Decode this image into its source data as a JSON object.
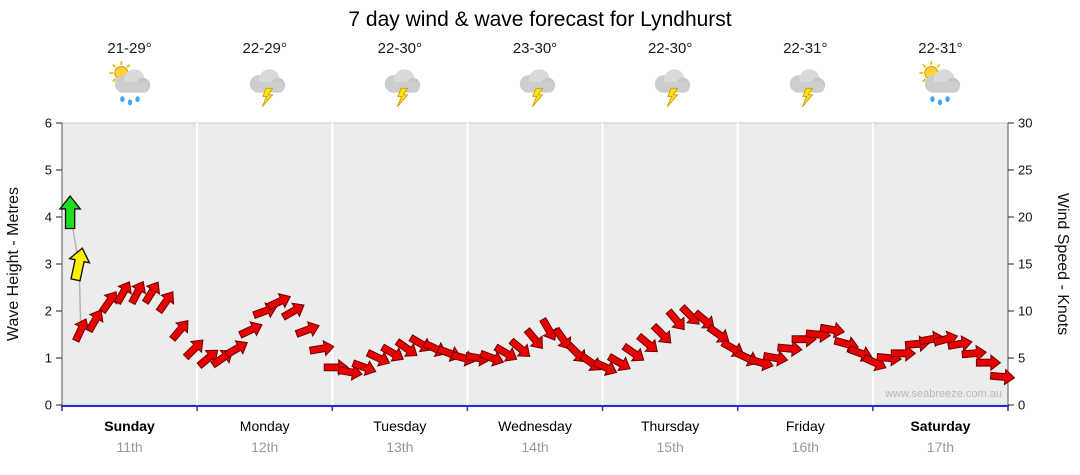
{
  "title": "7 day wind & wave forecast for Lyndhurst",
  "watermark": "www.seabreeze.com.au",
  "chart_data": {
    "type": "scatter",
    "title": "7 day wind & wave forecast for Lyndhurst",
    "left_axis": {
      "label": "Wave Height - Metres",
      "range": [
        0,
        6
      ],
      "ticks": [
        0,
        1,
        2,
        3,
        4,
        5,
        6
      ]
    },
    "right_axis": {
      "label": "Wind Speed - Knots",
      "range": [
        0,
        30
      ],
      "ticks": [
        0,
        5,
        10,
        15,
        20,
        25,
        30
      ]
    },
    "grid": {
      "day_separators": true,
      "plot_bg": "#ececec"
    },
    "days": [
      {
        "name": "Sunday",
        "date": "11th",
        "temp": "21-29°",
        "icon": "sun-cloud-rain",
        "bold": true
      },
      {
        "name": "Monday",
        "date": "12th",
        "temp": "22-29°",
        "icon": "cloud-lightning",
        "bold": false
      },
      {
        "name": "Tuesday",
        "date": "13th",
        "temp": "22-30°",
        "icon": "cloud-lightning",
        "bold": false
      },
      {
        "name": "Wednesday",
        "date": "14th",
        "temp": "23-30°",
        "icon": "cloud-lightning",
        "bold": false
      },
      {
        "name": "Thursday",
        "date": "15th",
        "temp": "22-30°",
        "icon": "cloud-lightning",
        "bold": false
      },
      {
        "name": "Friday",
        "date": "16th",
        "temp": "22-31°",
        "icon": "cloud-lightning",
        "bold": false
      },
      {
        "name": "Saturday",
        "date": "17th",
        "temp": "22-31°",
        "icon": "sun-cloud-rain",
        "bold": true
      }
    ],
    "wind_series": {
      "units": "knots",
      "t_start_days": 0.14,
      "t_end_days": 6.96,
      "knots": [
        8,
        9,
        11,
        12,
        12,
        12,
        11,
        8,
        6,
        5,
        5,
        6,
        8,
        10,
        11,
        10,
        8,
        6,
        4,
        3.5,
        4,
        5,
        5.5,
        6,
        6.5,
        6,
        5.5,
        5,
        5,
        5,
        5.5,
        6,
        7,
        8,
        7,
        5.5,
        4.5,
        4,
        4.5,
        5.5,
        6.5,
        7.5,
        9,
        9.5,
        9,
        7.5,
        6,
        5,
        4.5,
        5,
        6,
        7,
        7.5,
        8,
        6.5,
        5.5,
        4.5,
        5,
        5.5,
        6.5,
        7,
        7,
        6.5,
        5.5,
        4.5,
        3
      ],
      "dirs_deg": [
        25,
        30,
        35,
        30,
        28,
        32,
        35,
        40,
        45,
        50,
        55,
        60,
        65,
        70,
        65,
        60,
        70,
        80,
        90,
        100,
        110,
        115,
        120,
        125,
        120,
        115,
        110,
        105,
        100,
        110,
        120,
        130,
        140,
        150,
        145,
        135,
        125,
        115,
        120,
        125,
        130,
        135,
        140,
        135,
        130,
        125,
        120,
        115,
        105,
        100,
        95,
        90,
        95,
        100,
        105,
        110,
        115,
        95,
        90,
        85,
        80,
        75,
        80,
        85,
        90,
        95
      ]
    },
    "wave_markers": [
      {
        "name": "swell-arrow-primary",
        "t_days": 0.06,
        "metres": 4.1,
        "color": "#1fdd1f",
        "outline": "#111111",
        "rotate_deg": 0
      },
      {
        "name": "swell-arrow-secondary",
        "t_days": 0.125,
        "metres": 3.0,
        "color": "#ffee00",
        "outline": "#111111",
        "rotate_deg": 12
      }
    ],
    "colors": {
      "wind_arrow": "#e60000",
      "wind_arrow_outline": "#6e0000",
      "plot_bg": "#ececec",
      "axis_bottom": "#2b2bd0",
      "grid_separator": "#ffffff"
    }
  }
}
